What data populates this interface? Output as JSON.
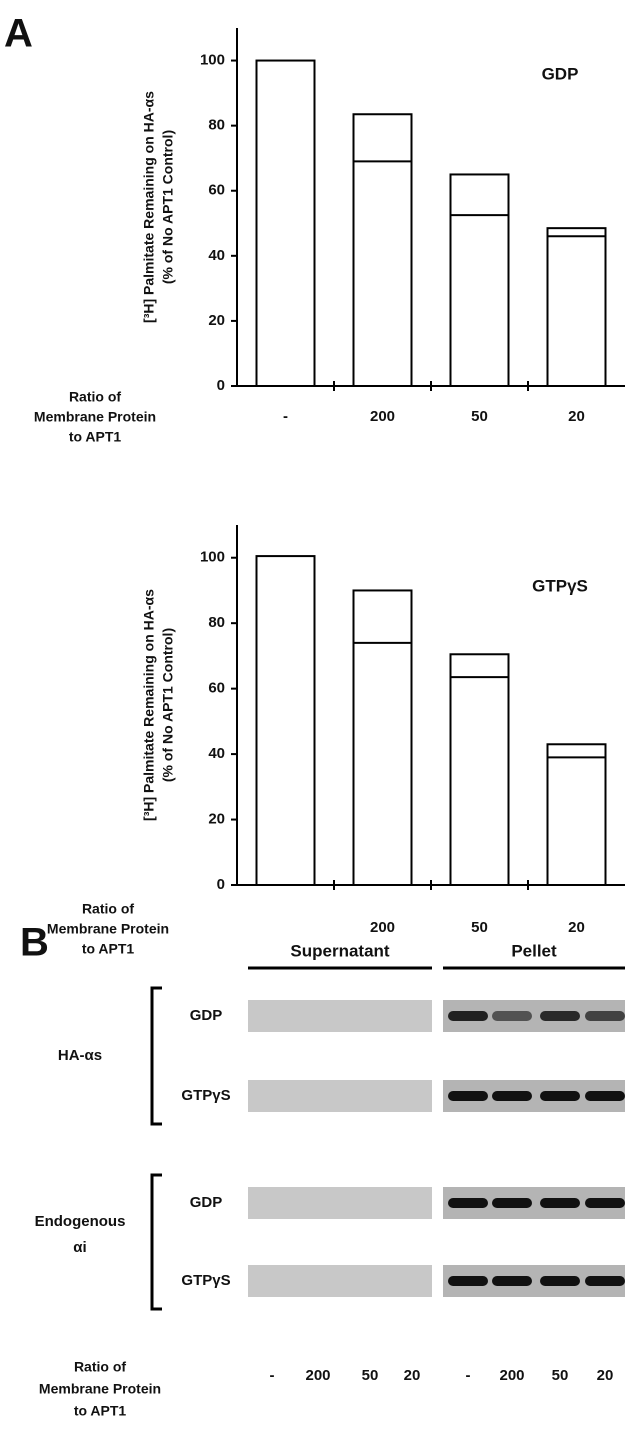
{
  "panel_a_label": "A",
  "chart_data": [
    {
      "type": "bar",
      "annotation": "GDP",
      "ylabel": [
        "[³H] Palmitate Remaining on HA-αs",
        "(% of No APT1 Control)"
      ],
      "xlabel": [
        "Ratio of",
        "Membrane Protein",
        "to  APT1"
      ],
      "categories": [
        "-",
        "200",
        "50",
        "20"
      ],
      "series": [
        {
          "color": "#ffffff",
          "values": [
            100,
            83.5,
            65,
            48.5
          ]
        },
        {
          "color": "#000000",
          "values": [
            null,
            69,
            52.5,
            46
          ]
        }
      ],
      "ylim": [
        0,
        110
      ],
      "yticks": [
        0,
        20,
        40,
        60,
        80,
        100
      ]
    },
    {
      "type": "bar",
      "annotation": "GTPγS",
      "ylabel": [
        "[³H] Palmitate Remaining on HA-αs",
        "(% of No APT1 Control)"
      ],
      "xlabel": [
        "Ratio of",
        "Membrane Protein",
        "to APT1"
      ],
      "categories": [
        null,
        "200",
        "50",
        "20"
      ],
      "series": [
        {
          "color": "#ffffff",
          "values": [
            100.5,
            90,
            70.5,
            43
          ]
        },
        {
          "color": "#000000",
          "values": [
            null,
            74,
            63.5,
            39
          ]
        }
      ],
      "ylim": [
        0,
        110
      ],
      "yticks": [
        0,
        20,
        40,
        60,
        80,
        100
      ]
    }
  ],
  "panel_b": {
    "label": "B",
    "headers": [
      "Supernatant",
      "Pellet"
    ],
    "groups": [
      {
        "label": [
          "HA-αs"
        ],
        "rows": [
          "GDP",
          "GTPγS"
        ]
      },
      {
        "label": [
          "Endogenous",
          "αi"
        ],
        "rows": [
          "GDP",
          "GTPγS"
        ]
      }
    ],
    "xlabel": [
      "Ratio of",
      "Membrane Protein",
      "to APT1"
    ],
    "lanes": [
      "-",
      "200",
      "50",
      "20",
      "-",
      "200",
      "50",
      "20"
    ]
  }
}
